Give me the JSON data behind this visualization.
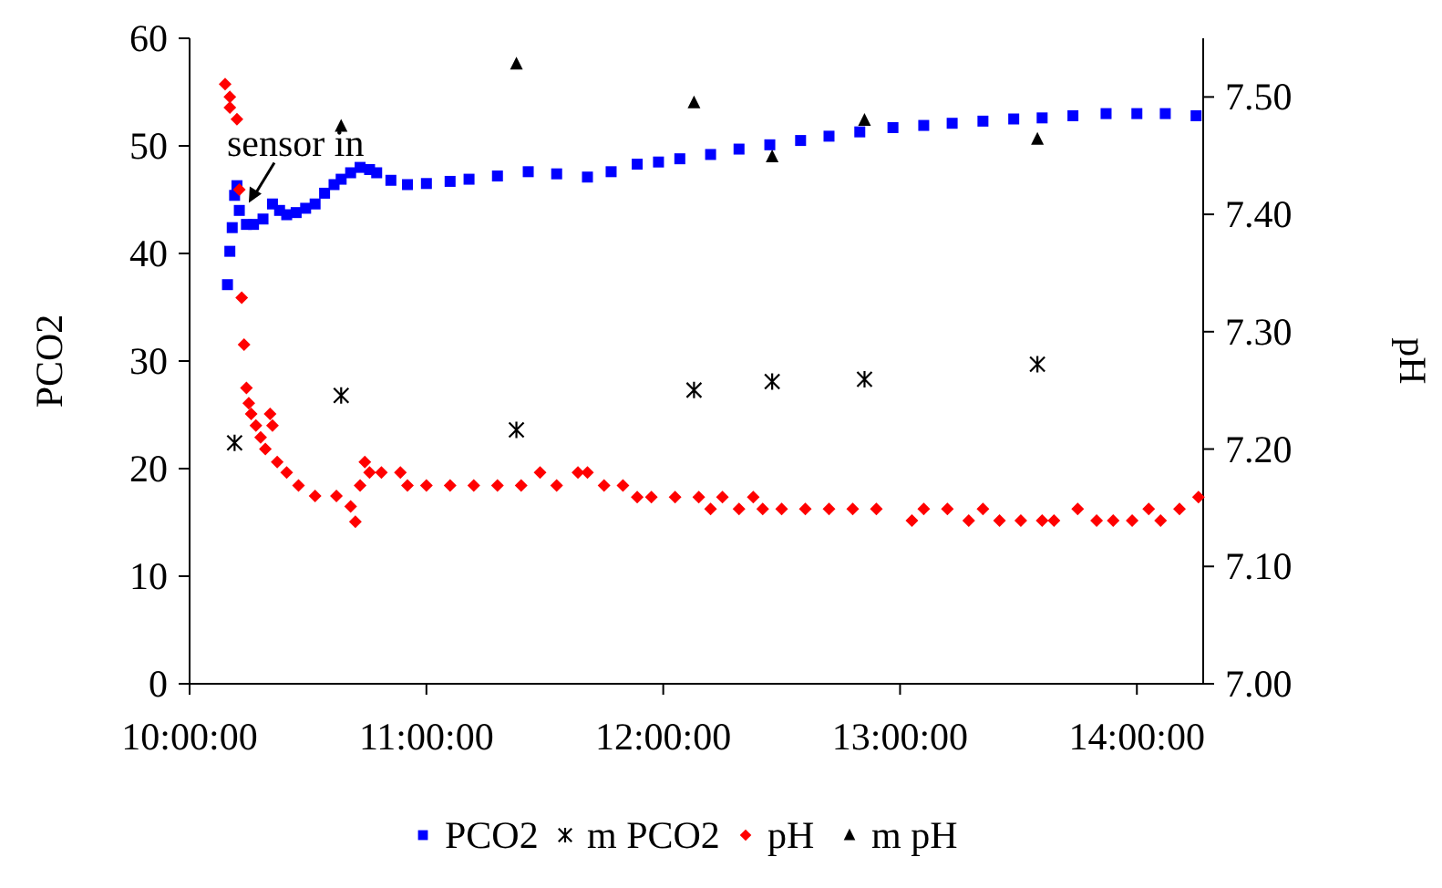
{
  "chart_data": {
    "type": "scatter",
    "xlabel": null,
    "ylabel": "PCO2",
    "y2label": "pH",
    "xlim": [
      10,
      14.28
    ],
    "xticks": [
      {
        "value": 10,
        "label": "10:00:00"
      },
      {
        "value": 11,
        "label": "11:00:00"
      },
      {
        "value": 12,
        "label": "12:00:00"
      },
      {
        "value": 13,
        "label": "13:00:00"
      },
      {
        "value": 14,
        "label": "14:00:00"
      }
    ],
    "ylim": [
      0,
      60
    ],
    "yticks": [
      0,
      10,
      20,
      30,
      40,
      50,
      60
    ],
    "y2lim": [
      7.0,
      7.55
    ],
    "y2ticks": [
      {
        "value": 7.0,
        "label": "7.00"
      },
      {
        "value": 7.1,
        "label": "7.10"
      },
      {
        "value": 7.2,
        "label": "7.20"
      },
      {
        "value": 7.3,
        "label": "7.30"
      },
      {
        "value": 7.4,
        "label": "7.40"
      },
      {
        "value": 7.5,
        "label": "7.50"
      }
    ],
    "grid": false,
    "legend": "bottom",
    "annotations": [
      {
        "text": "sensor in",
        "x": 10.25,
        "y": 44.7
      }
    ],
    "series": [
      {
        "name": "PCO2",
        "color": "#0000ff",
        "marker": "square",
        "x": [
          10.16,
          10.17,
          10.18,
          10.19,
          10.2,
          10.21,
          10.24,
          10.27,
          10.31,
          10.35,
          10.38,
          10.41,
          10.45,
          10.49,
          10.53,
          10.57,
          10.61,
          10.64,
          10.68,
          10.72,
          10.76,
          10.79,
          10.85,
          10.92,
          11.0,
          11.1,
          11.18,
          11.3,
          11.43,
          11.55,
          11.68,
          11.78,
          11.89,
          11.98,
          12.07,
          12.2,
          12.32,
          12.45,
          12.58,
          12.7,
          12.83,
          12.97,
          13.1,
          13.22,
          13.35,
          13.48,
          13.6,
          13.73,
          13.87,
          14.0,
          14.12,
          14.25
        ],
        "values": [
          37.1,
          40.2,
          42.4,
          45.4,
          46.3,
          44,
          42.7,
          42.7,
          43.2,
          44.6,
          44,
          43.6,
          43.8,
          44.2,
          44.6,
          45.6,
          46.4,
          46.9,
          47.5,
          48,
          47.8,
          47.5,
          46.8,
          46.4,
          46.5,
          46.7,
          46.9,
          47.2,
          47.6,
          47.4,
          47.1,
          47.6,
          48.3,
          48.5,
          48.8,
          49.2,
          49.7,
          50.1,
          50.5,
          50.9,
          51.3,
          51.7,
          51.9,
          52.1,
          52.3,
          52.5,
          52.6,
          52.8,
          53,
          53,
          53,
          52.8
        ]
      },
      {
        "name": "m PCO2",
        "color": "#000000",
        "marker": "cross",
        "x": [
          10.19,
          10.64,
          11.38,
          12.13,
          12.46,
          12.85,
          13.58
        ],
        "values": [
          22.4,
          26.8,
          23.6,
          27.3,
          28.1,
          28.3,
          29.7
        ]
      },
      {
        "name": "pH",
        "color": "#ff0000",
        "marker": "diamond",
        "axis": "y2",
        "x": [
          10.15,
          10.17,
          10.17,
          10.2,
          10.21,
          10.22,
          10.23,
          10.24,
          10.25,
          10.26,
          10.28,
          10.3,
          10.32,
          10.34,
          10.35,
          10.37,
          10.41,
          10.46,
          10.53,
          10.62,
          10.68,
          10.7,
          10.72,
          10.74,
          10.76,
          10.81,
          10.89,
          10.92,
          11.0,
          11.1,
          11.2,
          11.3,
          11.4,
          11.48,
          11.55,
          11.64,
          11.68,
          11.75,
          11.83,
          11.89,
          11.95,
          12.05,
          12.15,
          12.2,
          12.25,
          12.32,
          12.38,
          12.42,
          12.5,
          12.6,
          12.7,
          12.8,
          12.9,
          13.05,
          13.1,
          13.2,
          13.29,
          13.35,
          13.42,
          13.51,
          13.6,
          13.65,
          13.75,
          13.83,
          13.9,
          13.98,
          14.05,
          14.1,
          14.18,
          14.26
        ],
        "values": [
          7.511,
          7.5,
          7.491,
          7.481,
          7.421,
          7.329,
          7.289,
          7.252,
          7.239,
          7.23,
          7.22,
          7.21,
          7.2,
          7.23,
          7.22,
          7.189,
          7.18,
          7.169,
          7.16,
          7.16,
          7.151,
          7.138,
          7.169,
          7.189,
          7.18,
          7.18,
          7.18,
          7.169,
          7.169,
          7.169,
          7.169,
          7.169,
          7.169,
          7.18,
          7.169,
          7.18,
          7.18,
          7.169,
          7.169,
          7.159,
          7.159,
          7.159,
          7.159,
          7.149,
          7.159,
          7.149,
          7.159,
          7.149,
          7.149,
          7.149,
          7.149,
          7.149,
          7.149,
          7.139,
          7.149,
          7.149,
          7.139,
          7.149,
          7.139,
          7.139,
          7.139,
          7.139,
          7.149,
          7.139,
          7.139,
          7.139,
          7.149,
          7.139,
          7.149,
          7.159
        ]
      },
      {
        "name": "m pH",
        "color": "#000000",
        "marker": "triangle",
        "axis": "y2",
        "x": [
          10.64,
          11.38,
          12.13,
          12.46,
          12.85,
          13.58
        ],
        "values": [
          7.475,
          7.528,
          7.495,
          7.449,
          7.48,
          7.464
        ]
      }
    ]
  }
}
